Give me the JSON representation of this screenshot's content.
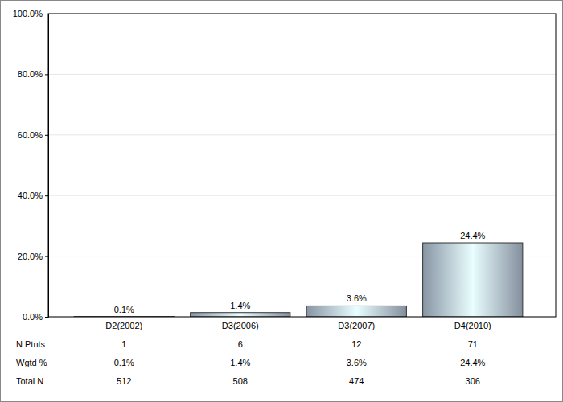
{
  "chart_data": {
    "type": "bar",
    "categories": [
      "D2(2002)",
      "D3(2006)",
      "D3(2007)",
      "D4(2010)"
    ],
    "values": [
      0.1,
      1.4,
      3.6,
      24.4
    ],
    "value_labels": [
      "0.1%",
      "1.4%",
      "3.6%",
      "24.4%"
    ],
    "data_labels": true,
    "color": "#a9b8cb",
    "ylim": [
      0,
      100
    ],
    "yticks": [
      {
        "value": 0,
        "label": "0.0%"
      },
      {
        "value": 20,
        "label": "20.0%"
      },
      {
        "value": 40,
        "label": "40.0%"
      },
      {
        "value": 60,
        "label": "60.0%"
      },
      {
        "value": 80,
        "label": "80.0%"
      },
      {
        "value": 100,
        "label": "100.0%"
      }
    ],
    "grid": true,
    "table": {
      "rows": [
        {
          "label": "N Ptnts",
          "values": [
            "1",
            "6",
            "12",
            "71"
          ]
        },
        {
          "label": "Wgtd %",
          "values": [
            "0.1%",
            "1.4%",
            "3.6%",
            "24.4%"
          ]
        },
        {
          "label": "Total N",
          "values": [
            "512",
            "508",
            "474",
            "306"
          ]
        }
      ]
    }
  }
}
